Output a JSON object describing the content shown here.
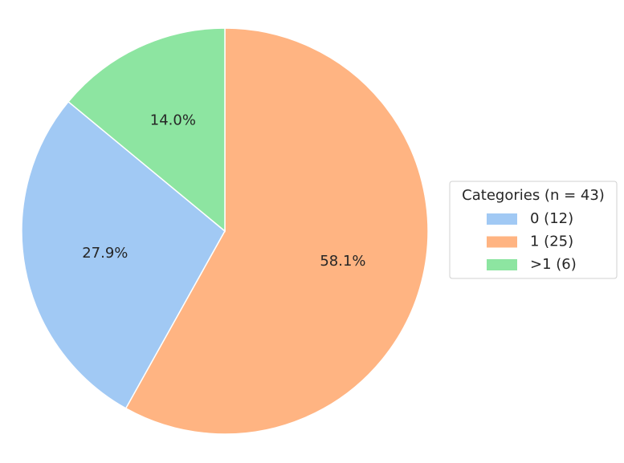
{
  "chart_data": {
    "type": "pie",
    "categories": [
      "0 (12)",
      "1 (25)",
      ">1 (6)"
    ],
    "values": [
      27.9,
      58.1,
      14.0
    ],
    "value_labels": [
      "27.9%",
      "58.1%",
      "14.0%"
    ],
    "colors": [
      "#a1c9f4",
      "#ffb482",
      "#8de5a1"
    ],
    "legend_title": "Categories (n = 43)",
    "legend": "right"
  }
}
